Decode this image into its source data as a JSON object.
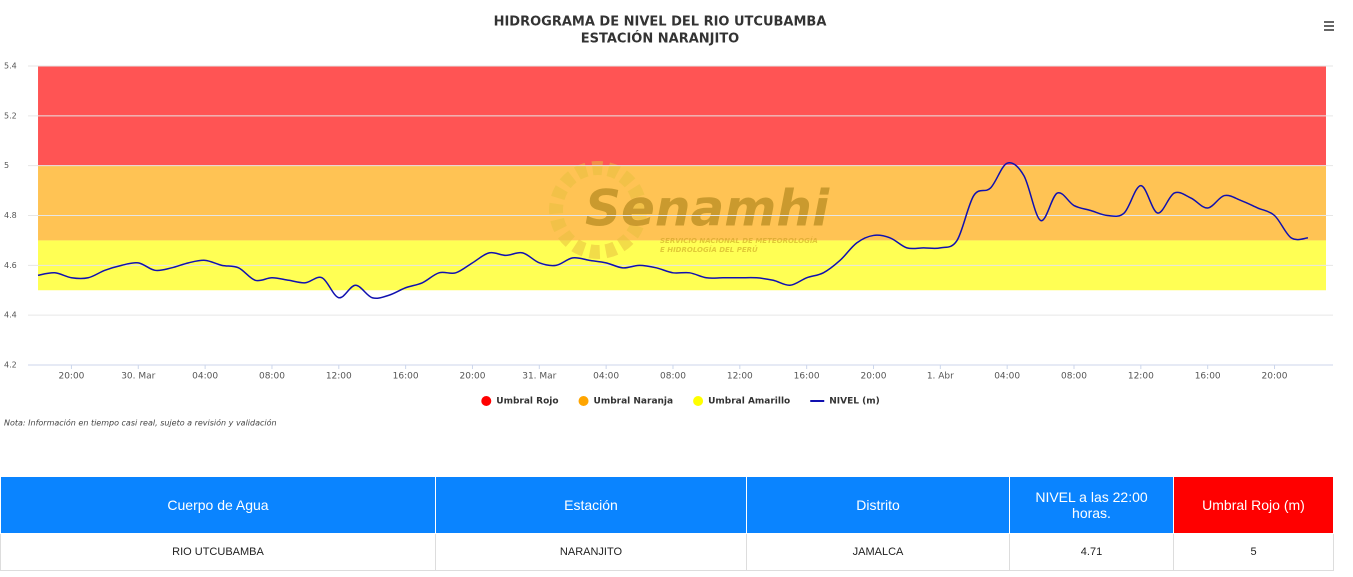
{
  "chart_data": {
    "type": "line",
    "title": "HIDROGRAMA DE NIVEL DEL RIO UTCUBAMBA",
    "subtitle": "ESTACIÓN NARANJITO",
    "watermark": {
      "name": "Senamhi",
      "line1": "SERVICIO NACIONAL DE METEOROLOGÍA",
      "line2": "E HIDROLOGÍA DEL PERÚ"
    },
    "x": [
      "03-29 18:00",
      "03-29 19:00",
      "03-29 20:00",
      "03-29 21:00",
      "03-29 22:00",
      "03-29 23:00",
      "03-30 00:00",
      "03-30 01:00",
      "03-30 02:00",
      "03-30 03:00",
      "03-30 04:00",
      "03-30 05:00",
      "03-30 06:00",
      "03-30 07:00",
      "03-30 08:00",
      "03-30 09:00",
      "03-30 10:00",
      "03-30 11:00",
      "03-30 12:00",
      "03-30 13:00",
      "03-30 14:00",
      "03-30 15:00",
      "03-30 16:00",
      "03-30 17:00",
      "03-30 18:00",
      "03-30 19:00",
      "03-30 20:00",
      "03-30 21:00",
      "03-30 22:00",
      "03-30 23:00",
      "03-31 00:00",
      "03-31 01:00",
      "03-31 02:00",
      "03-31 03:00",
      "03-31 04:00",
      "03-31 05:00",
      "03-31 06:00",
      "03-31 07:00",
      "03-31 08:00",
      "03-31 09:00",
      "03-31 10:00",
      "03-31 11:00",
      "03-31 12:00",
      "03-31 13:00",
      "03-31 14:00",
      "03-31 15:00",
      "03-31 16:00",
      "03-31 17:00",
      "03-31 18:00",
      "03-31 19:00",
      "03-31 20:00",
      "03-31 21:00",
      "03-31 22:00",
      "03-31 23:00",
      "04-01 00:00",
      "04-01 01:00",
      "04-01 02:00",
      "04-01 03:00",
      "04-01 04:00",
      "04-01 05:00",
      "04-01 06:00",
      "04-01 07:00",
      "04-01 08:00",
      "04-01 09:00",
      "04-01 10:00",
      "04-01 11:00",
      "04-01 12:00",
      "04-01 13:00",
      "04-01 14:00",
      "04-01 15:00",
      "04-01 16:00",
      "04-01 17:00",
      "04-01 18:00",
      "04-01 19:00",
      "04-01 20:00",
      "04-01 21:00",
      "04-01 22:00"
    ],
    "series": [
      {
        "name": "NIVEL (m)",
        "color": "#1010b0",
        "values": [
          4.56,
          4.57,
          4.55,
          4.55,
          4.58,
          4.6,
          4.61,
          4.58,
          4.59,
          4.61,
          4.62,
          4.6,
          4.59,
          4.54,
          4.55,
          4.54,
          4.53,
          4.55,
          4.47,
          4.52,
          4.47,
          4.48,
          4.51,
          4.53,
          4.57,
          4.57,
          4.61,
          4.65,
          4.64,
          4.65,
          4.61,
          4.6,
          4.63,
          4.62,
          4.61,
          4.59,
          4.6,
          4.59,
          4.57,
          4.57,
          4.55,
          4.55,
          4.55,
          4.55,
          4.54,
          4.52,
          4.55,
          4.57,
          4.62,
          4.69,
          4.72,
          4.71,
          4.67,
          4.67,
          4.67,
          4.7,
          4.88,
          4.91,
          5.01,
          4.96,
          4.78,
          4.89,
          4.84,
          4.82,
          4.8,
          4.81,
          4.92,
          4.81,
          4.89,
          4.87,
          4.83,
          4.88,
          4.86,
          4.83,
          4.8,
          4.71,
          4.71
        ]
      }
    ],
    "bands": [
      {
        "name": "Umbral Rojo",
        "color": "#ff0000",
        "from": 5,
        "to": 5.4
      },
      {
        "name": "Umbral Naranja",
        "color": "#ffa500",
        "from": 4.7,
        "to": 5
      },
      {
        "name": "Umbral Amarillo",
        "color": "#ffff00",
        "from": 4.5,
        "to": 4.7
      }
    ],
    "xlim": [
      "03-29 17:24",
      "04-01 23:30"
    ],
    "xticks": [
      {
        "value": "03-29 20:00",
        "label": "20:00"
      },
      {
        "value": "03-30 00:00",
        "label": "30. Mar"
      },
      {
        "value": "03-30 04:00",
        "label": "04:00"
      },
      {
        "value": "03-30 08:00",
        "label": "08:00"
      },
      {
        "value": "03-30 12:00",
        "label": "12:00"
      },
      {
        "value": "03-30 16:00",
        "label": "16:00"
      },
      {
        "value": "03-30 20:00",
        "label": "20:00"
      },
      {
        "value": "03-31 00:00",
        "label": "31. Mar"
      },
      {
        "value": "03-31 04:00",
        "label": "04:00"
      },
      {
        "value": "03-31 08:00",
        "label": "08:00"
      },
      {
        "value": "03-31 12:00",
        "label": "12:00"
      },
      {
        "value": "03-31 16:00",
        "label": "16:00"
      },
      {
        "value": "03-31 20:00",
        "label": "20:00"
      },
      {
        "value": "04-01 00:00",
        "label": "1. Abr"
      },
      {
        "value": "04-01 04:00",
        "label": "04:00"
      },
      {
        "value": "04-01 08:00",
        "label": "08:00"
      },
      {
        "value": "04-01 12:00",
        "label": "12:00"
      },
      {
        "value": "04-01 16:00",
        "label": "16:00"
      },
      {
        "value": "04-01 20:00",
        "label": "20:00"
      }
    ],
    "ylim": [
      4.2,
      5.4
    ],
    "yticks": [
      4.2,
      4.4,
      4.6,
      4.8,
      5,
      5.2,
      5.4
    ],
    "grid": true,
    "legend": "bottom",
    "note": "Nota: Información en tiempo casi real, sujeto a revisión y validación"
  },
  "table": {
    "header": [
      "Cuerpo de Agua",
      "Estación",
      "Distrito",
      "NIVEL a las 22:00 horas.",
      "Umbral Rojo (m)"
    ],
    "rows": [
      [
        "RIO UTCUBAMBA",
        "NARANJITO",
        "JAMALCA",
        4.71,
        5
      ]
    ]
  }
}
